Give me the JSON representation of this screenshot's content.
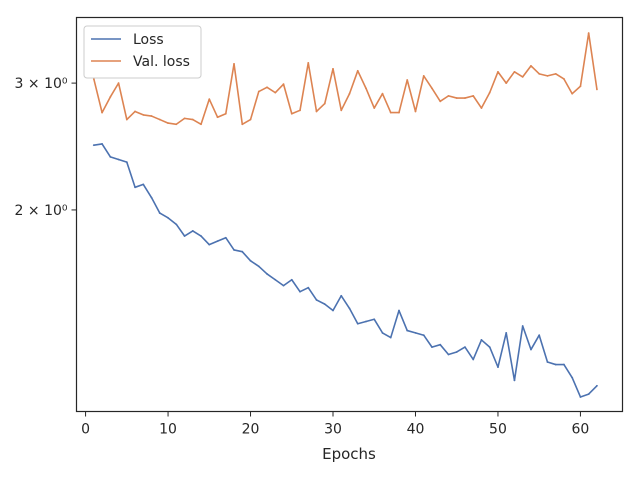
{
  "chart_data": {
    "type": "line",
    "xlabel": "Epochs",
    "ylabel": "",
    "xlim": [
      -1.1,
      65.1
    ],
    "ylim": [
      1.05,
      3.7
    ],
    "yscale": "log",
    "grid": false,
    "legend_position": "top-left",
    "x_ticks": [
      0,
      10,
      20,
      30,
      40,
      50,
      60
    ],
    "x_tick_labels": [
      "0",
      "10",
      "20",
      "30",
      "40",
      "50",
      "60"
    ],
    "y_ticks": [
      2,
      3
    ],
    "y_tick_labels": [
      "2 × 10⁰",
      "3 × 10⁰"
    ],
    "x": [
      1,
      2,
      3,
      4,
      5,
      6,
      7,
      8,
      9,
      10,
      11,
      12,
      13,
      14,
      15,
      16,
      17,
      18,
      19,
      20,
      21,
      22,
      23,
      24,
      25,
      26,
      27,
      28,
      29,
      30,
      31,
      32,
      33,
      34,
      35,
      36,
      37,
      38,
      39,
      40,
      41,
      42,
      43,
      44,
      45,
      46,
      47,
      48,
      49,
      50,
      51,
      52,
      53,
      54,
      55,
      56,
      57,
      58,
      59,
      60,
      61,
      62
    ],
    "series": [
      {
        "name": "Loss",
        "color": "#4c72b0",
        "values": [
          2.46,
          2.47,
          2.37,
          2.35,
          2.33,
          2.15,
          2.17,
          2.08,
          1.98,
          1.95,
          1.91,
          1.84,
          1.87,
          1.84,
          1.79,
          1.81,
          1.83,
          1.76,
          1.75,
          1.7,
          1.67,
          1.63,
          1.6,
          1.57,
          1.6,
          1.54,
          1.56,
          1.5,
          1.48,
          1.45,
          1.52,
          1.46,
          1.39,
          1.4,
          1.41,
          1.35,
          1.33,
          1.45,
          1.36,
          1.35,
          1.34,
          1.29,
          1.3,
          1.26,
          1.27,
          1.29,
          1.24,
          1.32,
          1.29,
          1.21,
          1.35,
          1.16,
          1.38,
          1.28,
          1.34,
          1.23,
          1.22,
          1.22,
          1.17,
          1.1,
          1.11,
          1.14
        ]
      },
      {
        "name": "Val. loss",
        "color": "#dd8452",
        "values": [
          3.04,
          2.73,
          2.87,
          3.0,
          2.67,
          2.74,
          2.71,
          2.7,
          2.67,
          2.64,
          2.63,
          2.68,
          2.67,
          2.63,
          2.85,
          2.69,
          2.72,
          3.19,
          2.63,
          2.67,
          2.92,
          2.96,
          2.91,
          2.99,
          2.72,
          2.75,
          3.2,
          2.74,
          2.81,
          3.14,
          2.75,
          2.9,
          3.12,
          2.95,
          2.77,
          2.9,
          2.73,
          2.73,
          3.03,
          2.74,
          3.07,
          2.95,
          2.83,
          2.88,
          2.86,
          2.86,
          2.88,
          2.77,
          2.91,
          3.11,
          3.0,
          3.11,
          3.06,
          3.17,
          3.09,
          3.07,
          3.09,
          3.04,
          2.9,
          2.97,
          3.52,
          2.94
        ]
      }
    ]
  }
}
